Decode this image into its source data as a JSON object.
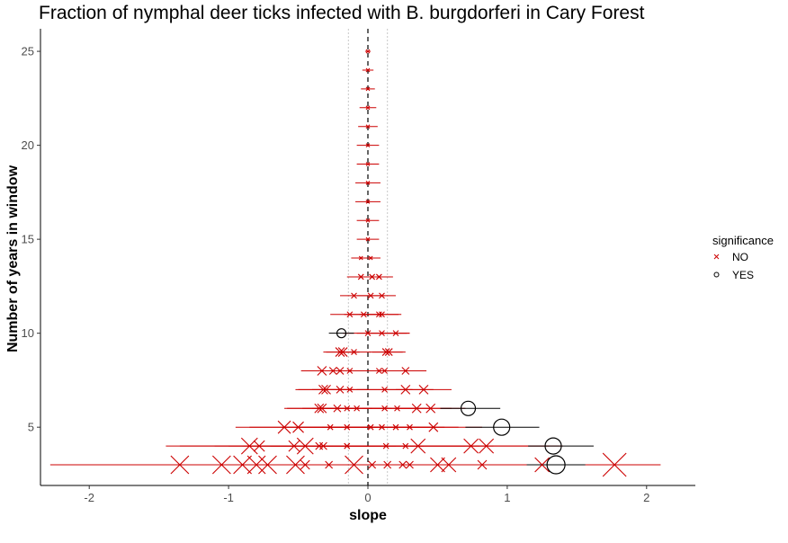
{
  "chart_data": {
    "type": "scatter",
    "title": "Fraction of nymphal deer ticks infected with B. burgdorferi in Cary Forest",
    "xlabel": "slope",
    "ylabel": "Number of years in window",
    "xlim": [
      -2.35,
      2.35
    ],
    "ylim": [
      1.9,
      26.2
    ],
    "x_ticks": [
      -2,
      -1,
      0,
      1,
      2
    ],
    "y_ticks": [
      5,
      10,
      15,
      20,
      25
    ],
    "vlines": {
      "zero": 0,
      "band": [
        -0.14,
        0.14
      ]
    },
    "colors": {
      "NO": "#cc0000",
      "YES": "#000000"
    },
    "legend": {
      "title": "significance",
      "position": "right",
      "entries": [
        "NO",
        "YES"
      ]
    },
    "series": [
      {
        "name": "NO",
        "marker": "x",
        "points": [
          {
            "x": -1.35,
            "y": 3,
            "lo": -2.28,
            "hi": -0.42,
            "size": 10
          },
          {
            "x": -1.05,
            "y": 3,
            "lo": -1.95,
            "hi": -0.15,
            "size": 10
          },
          {
            "x": -0.9,
            "y": 3,
            "lo": -1.8,
            "hi": 0.0,
            "size": 10
          },
          {
            "x": -0.8,
            "y": 3,
            "lo": -1.7,
            "hi": 0.1,
            "size": 10
          },
          {
            "x": -0.72,
            "y": 3,
            "lo": -1.62,
            "hi": 0.18,
            "size": 10
          },
          {
            "x": -0.52,
            "y": 3,
            "lo": -1.42,
            "hi": 0.38,
            "size": 10
          },
          {
            "x": -0.45,
            "y": 3,
            "lo": -1.3,
            "hi": 0.4,
            "size": 5
          },
          {
            "x": -0.28,
            "y": 3,
            "lo": -1.1,
            "hi": 0.5,
            "size": 4
          },
          {
            "x": -0.1,
            "y": 3,
            "lo": -0.9,
            "hi": 0.7,
            "size": 10
          },
          {
            "x": 0.03,
            "y": 3,
            "lo": -0.8,
            "hi": 0.9,
            "size": 4
          },
          {
            "x": 0.14,
            "y": 3,
            "lo": -0.7,
            "hi": 1.0,
            "size": 4
          },
          {
            "x": 0.25,
            "y": 3,
            "lo": -0.6,
            "hi": 1.1,
            "size": 4
          },
          {
            "x": 0.3,
            "y": 3,
            "lo": -0.6,
            "hi": 1.2,
            "size": 4
          },
          {
            "x": 0.5,
            "y": 3,
            "lo": -0.4,
            "hi": 1.4,
            "size": 8
          },
          {
            "x": 0.58,
            "y": 3,
            "lo": -0.3,
            "hi": 1.5,
            "size": 8
          },
          {
            "x": 0.82,
            "y": 3,
            "lo": -0.1,
            "hi": 1.7,
            "size": 5
          },
          {
            "x": 1.25,
            "y": 3,
            "lo": 0.4,
            "hi": 2.1,
            "size": 8
          },
          {
            "x": 1.77,
            "y": 3,
            "lo": 0.9,
            "hi": 2.1,
            "size": 13
          },
          {
            "x": -0.85,
            "y": 4,
            "lo": -1.45,
            "hi": -0.25,
            "size": 9
          },
          {
            "x": -0.78,
            "y": 4,
            "lo": -1.35,
            "hi": -0.2,
            "size": 6
          },
          {
            "x": -0.53,
            "y": 4,
            "lo": -1.1,
            "hi": 0.05,
            "size": 6
          },
          {
            "x": -0.45,
            "y": 4,
            "lo": -1.0,
            "hi": 0.1,
            "size": 9
          },
          {
            "x": -0.35,
            "y": 4,
            "lo": -0.9,
            "hi": 0.2,
            "size": 4
          },
          {
            "x": -0.32,
            "y": 4,
            "lo": -0.85,
            "hi": 0.2,
            "size": 4
          },
          {
            "x": -0.15,
            "y": 4,
            "lo": -0.7,
            "hi": 0.4,
            "size": 3
          },
          {
            "x": -0.15,
            "y": 4,
            "lo": -0.7,
            "hi": 0.4,
            "size": 3
          },
          {
            "x": 0.13,
            "y": 4,
            "lo": -0.4,
            "hi": 0.7,
            "size": 3
          },
          {
            "x": 0.27,
            "y": 4,
            "lo": -0.3,
            "hi": 0.8,
            "size": 3
          },
          {
            "x": 0.36,
            "y": 4,
            "lo": -0.2,
            "hi": 0.9,
            "size": 8
          },
          {
            "x": 0.74,
            "y": 4,
            "lo": 0.2,
            "hi": 1.3,
            "size": 8
          },
          {
            "x": 0.85,
            "y": 4,
            "lo": 0.3,
            "hi": 1.4,
            "size": 8
          },
          {
            "x": -0.6,
            "y": 5,
            "lo": -0.95,
            "hi": -0.25,
            "size": 7
          },
          {
            "x": -0.5,
            "y": 5,
            "lo": -0.85,
            "hi": -0.15,
            "size": 6
          },
          {
            "x": -0.27,
            "y": 5,
            "lo": -0.62,
            "hi": 0.08,
            "size": 3
          },
          {
            "x": -0.15,
            "y": 5,
            "lo": -0.5,
            "hi": 0.2,
            "size": 3
          },
          {
            "x": 0.02,
            "y": 5,
            "lo": -0.33,
            "hi": 0.37,
            "size": 3
          },
          {
            "x": 0.1,
            "y": 5,
            "lo": -0.25,
            "hi": 0.45,
            "size": 3
          },
          {
            "x": 0.2,
            "y": 5,
            "lo": -0.15,
            "hi": 0.55,
            "size": 3
          },
          {
            "x": 0.3,
            "y": 5,
            "lo": -0.05,
            "hi": 0.65,
            "size": 3
          },
          {
            "x": 0.47,
            "y": 5,
            "lo": 0.12,
            "hi": 0.82,
            "size": 5
          },
          {
            "x": -0.35,
            "y": 6,
            "lo": -0.6,
            "hi": -0.1,
            "size": 5
          },
          {
            "x": -0.33,
            "y": 6,
            "lo": -0.58,
            "hi": -0.08,
            "size": 5
          },
          {
            "x": -0.22,
            "y": 6,
            "lo": -0.47,
            "hi": 0.03,
            "size": 4
          },
          {
            "x": -0.15,
            "y": 6,
            "lo": -0.4,
            "hi": 0.1,
            "size": 3
          },
          {
            "x": -0.08,
            "y": 6,
            "lo": -0.33,
            "hi": 0.17,
            "size": 3
          },
          {
            "x": 0.12,
            "y": 6,
            "lo": -0.13,
            "hi": 0.37,
            "size": 3
          },
          {
            "x": 0.21,
            "y": 6,
            "lo": -0.04,
            "hi": 0.46,
            "size": 3
          },
          {
            "x": 0.35,
            "y": 6,
            "lo": 0.1,
            "hi": 0.6,
            "size": 5
          },
          {
            "x": 0.45,
            "y": 6,
            "lo": 0.2,
            "hi": 0.7,
            "size": 5
          },
          {
            "x": -0.32,
            "y": 7,
            "lo": -0.52,
            "hi": -0.12,
            "size": 5
          },
          {
            "x": -0.3,
            "y": 7,
            "lo": -0.5,
            "hi": -0.1,
            "size": 5
          },
          {
            "x": -0.2,
            "y": 7,
            "lo": -0.4,
            "hi": 0.0,
            "size": 4
          },
          {
            "x": -0.13,
            "y": 7,
            "lo": -0.33,
            "hi": 0.07,
            "size": 3
          },
          {
            "x": 0.12,
            "y": 7,
            "lo": -0.08,
            "hi": 0.32,
            "size": 3
          },
          {
            "x": 0.27,
            "y": 7,
            "lo": 0.07,
            "hi": 0.47,
            "size": 5
          },
          {
            "x": 0.4,
            "y": 7,
            "lo": 0.2,
            "hi": 0.6,
            "size": 5
          },
          {
            "x": -0.33,
            "y": 8,
            "lo": -0.48,
            "hi": -0.18,
            "size": 5
          },
          {
            "x": -0.25,
            "y": 8,
            "lo": -0.4,
            "hi": -0.1,
            "size": 4
          },
          {
            "x": -0.2,
            "y": 8,
            "lo": -0.35,
            "hi": -0.05,
            "size": 4
          },
          {
            "x": -0.13,
            "y": 8,
            "lo": -0.28,
            "hi": 0.02,
            "size": 3
          },
          {
            "x": 0.08,
            "y": 8,
            "lo": -0.07,
            "hi": 0.23,
            "size": 3
          },
          {
            "x": 0.12,
            "y": 8,
            "lo": -0.03,
            "hi": 0.27,
            "size": 3
          },
          {
            "x": 0.27,
            "y": 8,
            "lo": 0.12,
            "hi": 0.42,
            "size": 4
          },
          {
            "x": -0.2,
            "y": 9,
            "lo": -0.32,
            "hi": -0.08,
            "size": 5
          },
          {
            "x": -0.18,
            "y": 9,
            "lo": -0.3,
            "hi": -0.06,
            "size": 5
          },
          {
            "x": -0.1,
            "y": 9,
            "lo": -0.22,
            "hi": 0.02,
            "size": 3
          },
          {
            "x": 0.13,
            "y": 9,
            "lo": 0.01,
            "hi": 0.25,
            "size": 4
          },
          {
            "x": 0.15,
            "y": 9,
            "lo": 0.03,
            "hi": 0.27,
            "size": 4
          },
          {
            "x": 0.0,
            "y": 10,
            "lo": -0.18,
            "hi": 0.3,
            "size": 3
          },
          {
            "x": 0.1,
            "y": 10,
            "lo": -0.08,
            "hi": 0.28,
            "size": 3
          },
          {
            "x": 0.2,
            "y": 10,
            "lo": 0.02,
            "hi": 0.3,
            "size": 3
          },
          {
            "x": -0.13,
            "y": 11,
            "lo": -0.27,
            "hi": 0.01,
            "size": 3
          },
          {
            "x": -0.03,
            "y": 11,
            "lo": -0.17,
            "hi": 0.11,
            "size": 3
          },
          {
            "x": 0.08,
            "y": 11,
            "lo": -0.06,
            "hi": 0.22,
            "size": 3
          },
          {
            "x": 0.1,
            "y": 11,
            "lo": -0.04,
            "hi": 0.24,
            "size": 3
          },
          {
            "x": -0.1,
            "y": 12,
            "lo": -0.2,
            "hi": 0.0,
            "size": 3
          },
          {
            "x": 0.02,
            "y": 12,
            "lo": -0.08,
            "hi": 0.12,
            "size": 3
          },
          {
            "x": 0.1,
            "y": 12,
            "lo": 0.0,
            "hi": 0.2,
            "size": 3
          },
          {
            "x": -0.05,
            "y": 13,
            "lo": -0.15,
            "hi": 0.05,
            "size": 3
          },
          {
            "x": 0.03,
            "y": 13,
            "lo": -0.07,
            "hi": 0.13,
            "size": 3
          },
          {
            "x": 0.08,
            "y": 13,
            "lo": -0.02,
            "hi": 0.18,
            "size": 3
          },
          {
            "x": -0.05,
            "y": 14,
            "lo": -0.12,
            "hi": 0.02,
            "size": 2
          },
          {
            "x": 0.02,
            "y": 14,
            "lo": -0.05,
            "hi": 0.09,
            "size": 2
          },
          {
            "x": 0.0,
            "y": 15,
            "lo": -0.08,
            "hi": 0.08,
            "size": 2
          },
          {
            "x": 0.0,
            "y": 16,
            "lo": -0.08,
            "hi": 0.08,
            "size": 2
          },
          {
            "x": 0.0,
            "y": 17,
            "lo": -0.09,
            "hi": 0.09,
            "size": 2
          },
          {
            "x": 0.0,
            "y": 18,
            "lo": -0.09,
            "hi": 0.09,
            "size": 2
          },
          {
            "x": 0.0,
            "y": 19,
            "lo": -0.08,
            "hi": 0.08,
            "size": 2
          },
          {
            "x": 0.0,
            "y": 20,
            "lo": -0.08,
            "hi": 0.08,
            "size": 2
          },
          {
            "x": 0.0,
            "y": 21,
            "lo": -0.07,
            "hi": 0.07,
            "size": 2
          },
          {
            "x": 0.0,
            "y": 22,
            "lo": -0.06,
            "hi": 0.06,
            "size": 2
          },
          {
            "x": 0.0,
            "y": 23,
            "lo": -0.05,
            "hi": 0.05,
            "size": 2
          },
          {
            "x": 0.0,
            "y": 24,
            "lo": -0.04,
            "hi": 0.04,
            "size": 2
          },
          {
            "x": 0.0,
            "y": 25,
            "lo": -0.02,
            "hi": 0.02,
            "size": 2
          }
        ]
      },
      {
        "name": "YES",
        "marker": "circle",
        "points": [
          {
            "x": 1.35,
            "y": 3,
            "lo": 1.14,
            "hi": 1.56,
            "size": 10
          },
          {
            "x": 1.33,
            "y": 4,
            "lo": 1.15,
            "hi": 1.62,
            "size": 9
          },
          {
            "x": 0.96,
            "y": 5,
            "lo": 0.7,
            "hi": 1.23,
            "size": 9
          },
          {
            "x": 0.72,
            "y": 6,
            "lo": 0.52,
            "hi": 0.95,
            "size": 8
          },
          {
            "x": -0.19,
            "y": 10,
            "lo": -0.28,
            "hi": -0.1,
            "size": 5
          }
        ]
      }
    ]
  }
}
